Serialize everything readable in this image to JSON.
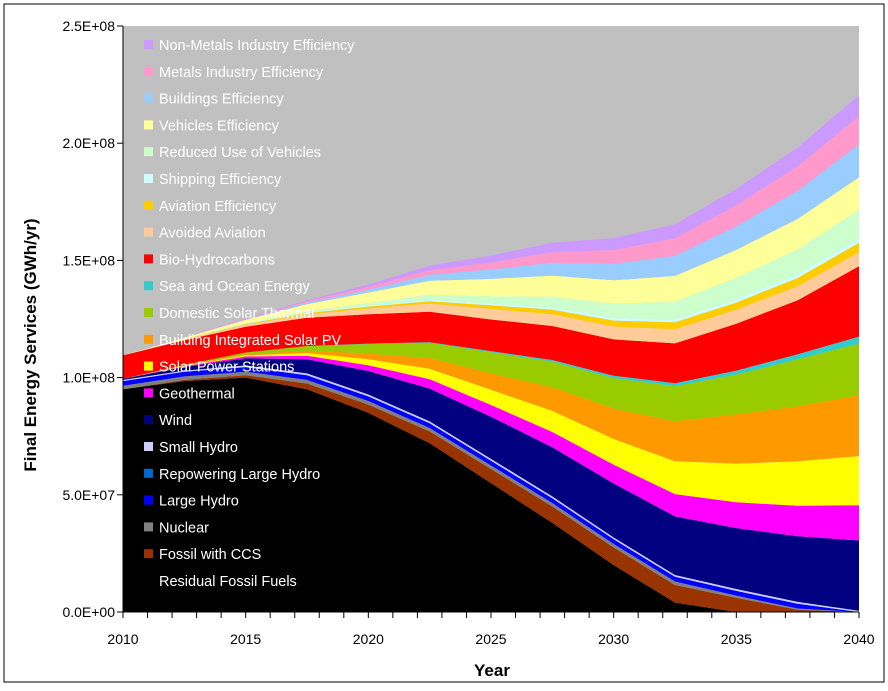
{
  "chart_data": {
    "type": "area",
    "stacked": true,
    "xlabel": "Year",
    "ylabel": "Final Energy Services (GWh/yr)",
    "xlim": [
      2010,
      2040
    ],
    "ylim": [
      0,
      250000000
    ],
    "x_ticks": [
      "2010",
      "2015",
      "2020",
      "2025",
      "2030",
      "2035",
      "2040"
    ],
    "y_ticks": [
      {
        "value": 0,
        "label": "0.0E+00"
      },
      {
        "value": 50000000,
        "label": "5.0E+07"
      },
      {
        "value": 100000000,
        "label": "1.0E+08"
      },
      {
        "value": 150000000,
        "label": "1.5E+08"
      },
      {
        "value": 200000000,
        "label": "2.0E+08"
      },
      {
        "value": 250000000,
        "label": "2.5E+08"
      }
    ],
    "plot_background": "#c0c0c0",
    "grid": false,
    "legend_placement": "inside-left",
    "x": [
      2010,
      2012.5,
      2015,
      2017.5,
      2020,
      2022.5,
      2025,
      2027.5,
      2030,
      2032.5,
      2035,
      2037.5,
      2040
    ],
    "series": [
      {
        "name": "Residual Fossil Fuels",
        "color": "#000000",
        "values": [
          95,
          98.5,
          100,
          95,
          85,
          72,
          55,
          38,
          20,
          4,
          0,
          0,
          0
        ]
      },
      {
        "name": "Fossil  with CCS",
        "color": "#993300",
        "values": [
          0,
          0.5,
          1,
          2.5,
          3.5,
          5,
          6,
          7,
          7.5,
          7.5,
          6,
          1,
          0
        ]
      },
      {
        "name": "Nuclear",
        "color": "#808080",
        "values": [
          1.5,
          1.5,
          1.5,
          1.5,
          1.5,
          1.5,
          1.5,
          1.5,
          1.5,
          1.5,
          1.0,
          0.5,
          0
        ]
      },
      {
        "name": "Large Hydro",
        "color": "#0000ff",
        "values": [
          2,
          2,
          2,
          2,
          2,
          2,
          2,
          2,
          2,
          2,
          2,
          2,
          0
        ]
      },
      {
        "name": "Repowering Large Hydro",
        "color": "#0066cc",
        "values": [
          0,
          0,
          0,
          0,
          0,
          0,
          0,
          0,
          0,
          0,
          0,
          0,
          0
        ]
      },
      {
        "name": "Small Hydro",
        "color": "#ccccff",
        "values": [
          0.5,
          0.5,
          0.7,
          0.8,
          0.8,
          0.8,
          0.8,
          0.8,
          0.8,
          0.8,
          0.8,
          0.8,
          0.5
        ]
      },
      {
        "name": "Wind",
        "color": "#000080",
        "values": [
          0.5,
          1.5,
          3,
          6,
          10,
          14,
          18,
          21,
          23,
          25,
          26,
          28,
          30
        ]
      },
      {
        "name": "Geothermal",
        "color": "#ff00ff",
        "values": [
          0,
          0.3,
          0.8,
          1.5,
          2.5,
          4,
          5,
          6.5,
          8,
          9.5,
          11,
          13,
          15
        ]
      },
      {
        "name": "Solar Power Stations",
        "color": "#ffff00",
        "values": [
          0,
          0.2,
          0.5,
          1.2,
          2.5,
          4.5,
          6.5,
          9,
          11,
          14,
          16.5,
          19,
          21
        ]
      },
      {
        "name": "Building Integrated Solar PV",
        "color": "#ff9900",
        "values": [
          0,
          0.2,
          0.5,
          1,
          2.5,
          4.5,
          7,
          10,
          13,
          17,
          21,
          23.5,
          26
        ]
      },
      {
        "name": "Domestic Solar Thermal",
        "color": "#99cc00",
        "values": [
          0,
          0.2,
          0.7,
          2,
          4,
          6.5,
          9,
          11,
          13,
          15,
          17,
          20,
          22
        ]
      },
      {
        "name": "Sea and Ocean Energy",
        "color": "#33cccc",
        "values": [
          0,
          0,
          0,
          0,
          0.2,
          0.3,
          0.5,
          0.7,
          1,
          1.3,
          1.7,
          2.2,
          3
        ]
      },
      {
        "name": "Bio-Hydrocarbons",
        "color": "#ff0000",
        "values": [
          10,
          10.5,
          11,
          12,
          12.5,
          13,
          13.5,
          14.5,
          15.5,
          17,
          20,
          23,
          30
        ]
      },
      {
        "name": "Avoided Aviation",
        "color": "#ffcc99",
        "values": [
          0,
          0.3,
          0.8,
          1.5,
          2.5,
          3.5,
          4.5,
          5,
          5.5,
          6,
          6,
          6,
          6
        ]
      },
      {
        "name": "Aviation Efficiency",
        "color": "#ffcc00",
        "values": [
          0,
          0.1,
          0.3,
          0.5,
          0.8,
          1,
          1.5,
          2,
          2.5,
          3,
          3,
          3.5,
          4
        ]
      },
      {
        "name": "Shipping Efficiency",
        "color": "#ccffff",
        "values": [
          0,
          0.1,
          0.2,
          0.3,
          0.5,
          0.7,
          0.8,
          1,
          1.2,
          1.3,
          1.5,
          1.7,
          2
        ]
      },
      {
        "name": "Reduced Use of Vehicles",
        "color": "#ccffcc",
        "values": [
          0,
          0,
          0.1,
          0.5,
          1,
          2,
          3,
          4.5,
          6,
          7.5,
          9,
          10.5,
          12
        ]
      },
      {
        "name": "Vehicles Efficiency",
        "color": "#ffff99",
        "values": [
          0,
          0.6,
          1.5,
          3,
          4.5,
          6,
          7.5,
          9,
          10,
          11,
          12,
          13,
          14
        ]
      },
      {
        "name": "Buildings Efficiency",
        "color": "#99ccff",
        "values": [
          0,
          0.1,
          0.2,
          0.6,
          1.2,
          2.5,
          4,
          5.5,
          7,
          8.5,
          10,
          12,
          14
        ]
      },
      {
        "name": "Metals Industry Efficiency",
        "color": "#ff99cc",
        "values": [
          0,
          0.1,
          0.3,
          0.6,
          1.2,
          2,
          3,
          4.5,
          6,
          7.5,
          9,
          10.5,
          12
        ]
      },
      {
        "name": "Non-Metals Industry Efficiency",
        "color": "#cc99ff",
        "values": [
          0,
          0.1,
          0.2,
          0.5,
          1,
          2,
          3,
          4,
          5,
          6,
          7,
          8,
          9
        ]
      }
    ],
    "values_unit_multiplier": 1000000,
    "legend": [
      {
        "label": "Non-Metals Industry Efficiency",
        "color": "#cc99ff"
      },
      {
        "label": "Metals Industry Efficiency",
        "color": "#ff99cc"
      },
      {
        "label": "Buildings Efficiency",
        "color": "#99ccff"
      },
      {
        "label": "Vehicles Efficiency",
        "color": "#ffff99"
      },
      {
        "label": "Reduced Use of Vehicles",
        "color": "#ccffcc"
      },
      {
        "label": "Shipping Efficiency",
        "color": "#ccffff"
      },
      {
        "label": "Aviation Efficiency",
        "color": "#ffcc00"
      },
      {
        "label": "Avoided Aviation",
        "color": "#ffcc99"
      },
      {
        "label": "Bio-Hydrocarbons",
        "color": "#ff0000"
      },
      {
        "label": "Sea and Ocean Energy",
        "color": "#33cccc"
      },
      {
        "label": "Domestic Solar Thermal",
        "color": "#99cc00"
      },
      {
        "label": "Building Integrated Solar PV",
        "color": "#ff9900"
      },
      {
        "label": "Solar Power Stations",
        "color": "#ffff00"
      },
      {
        "label": "Geothermal",
        "color": "#ff00ff"
      },
      {
        "label": "Wind",
        "color": "#000080"
      },
      {
        "label": "Small Hydro",
        "color": "#ccccff"
      },
      {
        "label": "Repowering Large Hydro",
        "color": "#0066cc"
      },
      {
        "label": "Large Hydro",
        "color": "#0000ff"
      },
      {
        "label": "Nuclear",
        "color": "#808080"
      },
      {
        "label": "Fossil  with CCS",
        "color": "#993300"
      },
      {
        "label": "Residual Fossil Fuels",
        "color": "#000000"
      }
    ]
  }
}
